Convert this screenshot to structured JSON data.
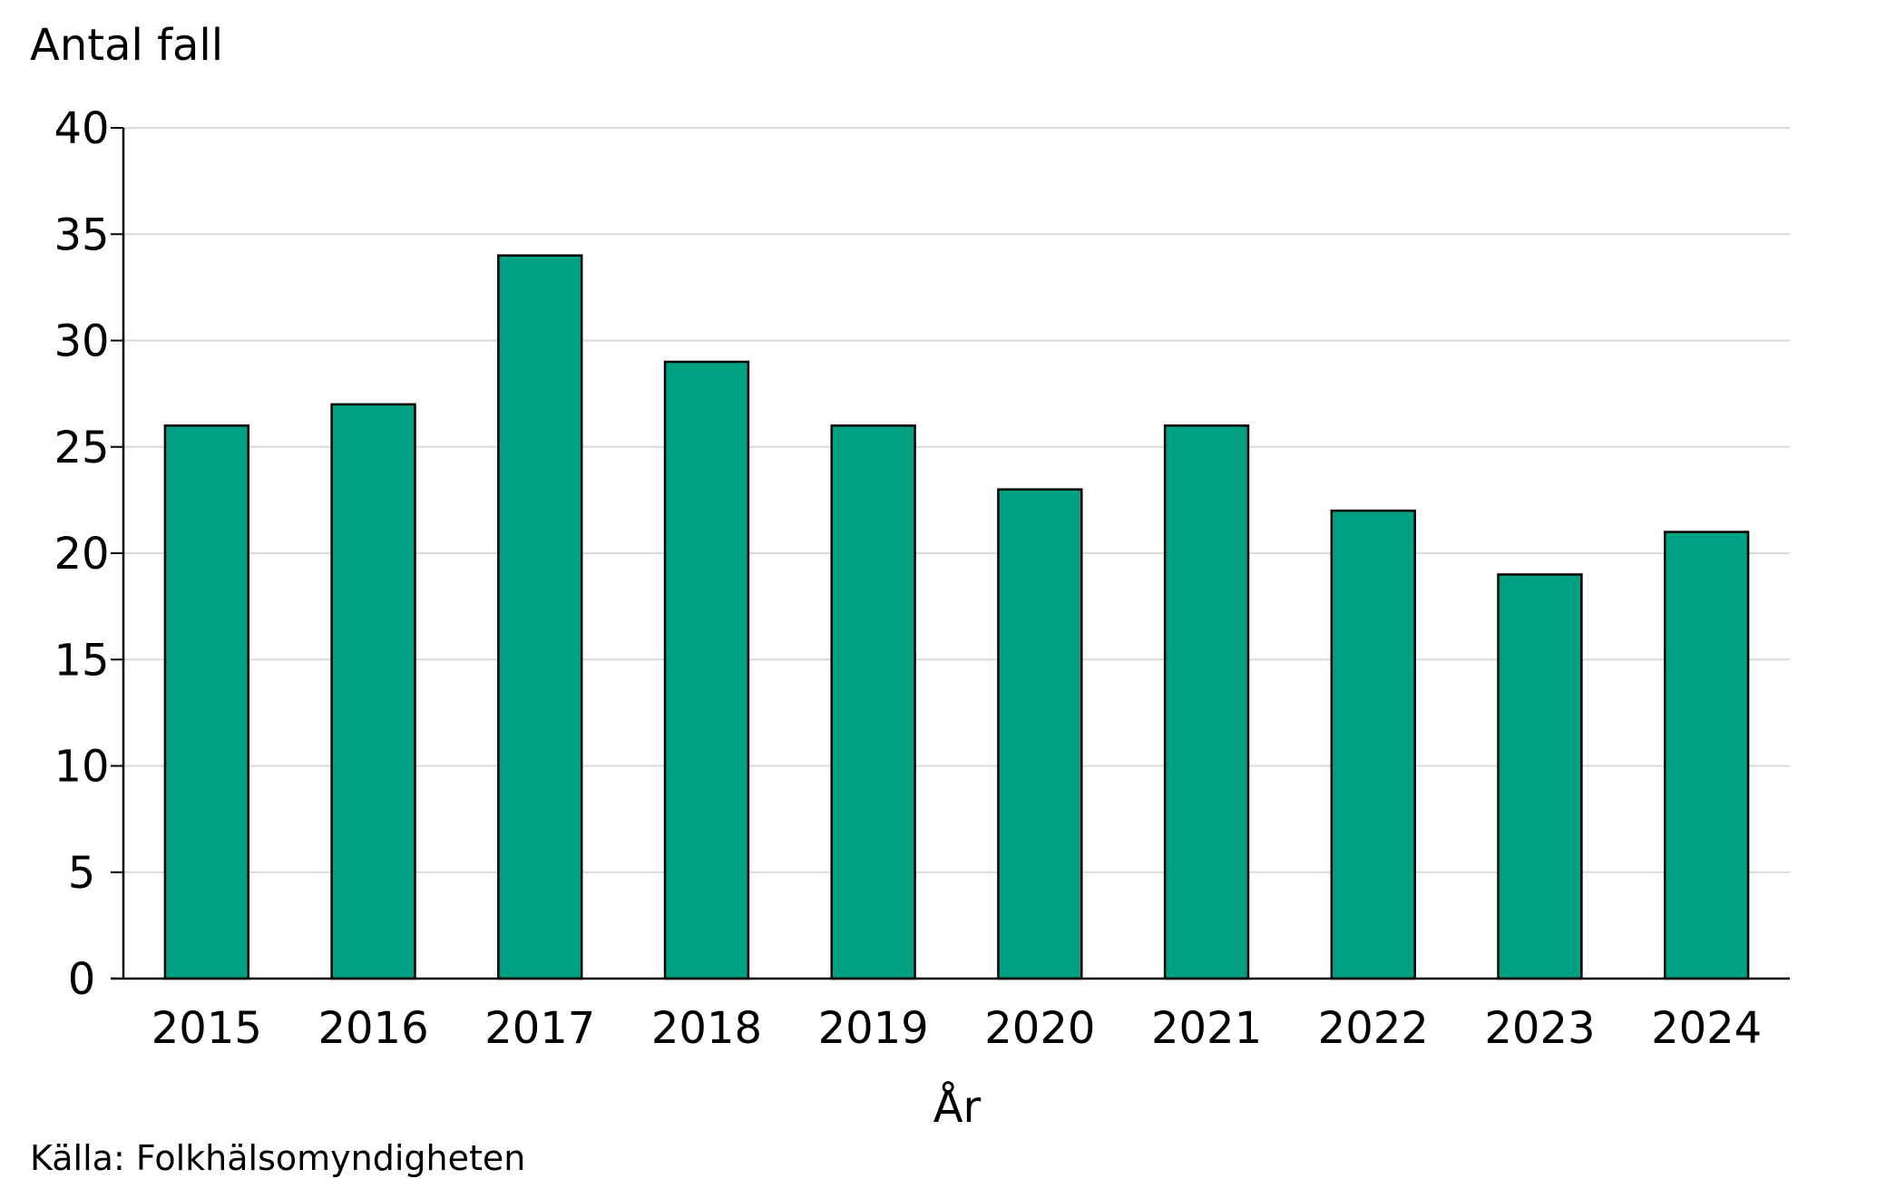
{
  "chart_data": {
    "type": "bar",
    "ylabel": "Antal fall",
    "xlabel": "År",
    "source": "Källa: Folkhälsomyndigheten",
    "categories": [
      "2015",
      "2016",
      "2017",
      "2018",
      "2019",
      "2020",
      "2021",
      "2022",
      "2023",
      "2024"
    ],
    "values": [
      26,
      27,
      34,
      29,
      26,
      23,
      26,
      22,
      19,
      21
    ],
    "ylim": [
      0,
      40
    ],
    "yticks": [
      "0",
      "5",
      "10",
      "15",
      "20",
      "25",
      "30",
      "35",
      "40"
    ],
    "grid": true,
    "bar_color": "#00a082",
    "grid_color": "#d9d9d9"
  }
}
